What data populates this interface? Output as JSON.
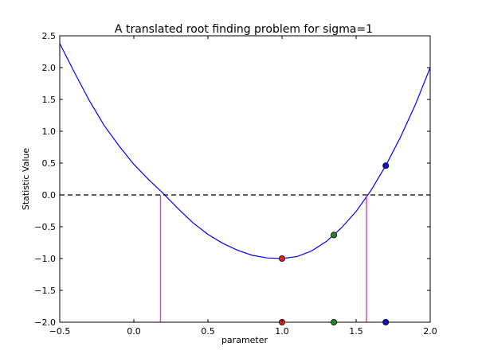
{
  "chart_data": {
    "type": "line",
    "title": "A translated root finding problem for sigma=1",
    "xlabel": "parameter",
    "ylabel": "Statistic Value",
    "xlim": [
      -0.5,
      2.0
    ],
    "ylim": [
      -2.0,
      2.5
    ],
    "xticks": [
      "−0.5",
      "0.0",
      "0.5",
      "1.0",
      "1.5",
      "2.0"
    ],
    "yticks": [
      "−2.0",
      "−1.5",
      "−1.0",
      "−0.5",
      "0.0",
      "0.5",
      "1.0",
      "1.5",
      "2.0",
      "2.5"
    ],
    "grid": false,
    "series": [
      {
        "kind": "curve",
        "color": "#0000ff",
        "x": [
          -0.5,
          -0.4,
          -0.3,
          -0.2,
          -0.1,
          0.0,
          0.1,
          0.2,
          0.3,
          0.4,
          0.5,
          0.6,
          0.7,
          0.8,
          0.9,
          1.0,
          1.1,
          1.2,
          1.3,
          1.4,
          1.5,
          1.6,
          1.7,
          1.8,
          1.9,
          2.0
        ],
        "y": [
          2.38,
          1.92,
          1.48,
          1.09,
          0.77,
          0.48,
          0.24,
          0.02,
          -0.22,
          -0.44,
          -0.62,
          -0.76,
          -0.87,
          -0.95,
          -0.99,
          -1.0,
          -0.97,
          -0.88,
          -0.73,
          -0.52,
          -0.26,
          0.07,
          0.46,
          0.91,
          1.42,
          2.0
        ]
      },
      {
        "kind": "hline",
        "y": 0.0,
        "style": "dashed",
        "color": "#000000"
      },
      {
        "kind": "vlines",
        "color": "#cc44cc",
        "x": [
          0.18,
          1.57
        ],
        "from_y": -2.0,
        "to_y": 0.0
      },
      {
        "kind": "points",
        "points": [
          {
            "x": 1.0,
            "y": -1.0,
            "color": "#dd2222"
          },
          {
            "x": 1.0,
            "y": -2.0,
            "color": "#dd2222"
          },
          {
            "x": 1.35,
            "y": -0.63,
            "color": "#228822"
          },
          {
            "x": 1.35,
            "y": -2.0,
            "color": "#228822"
          },
          {
            "x": 1.7,
            "y": 0.46,
            "color": "#1111cc"
          },
          {
            "x": 1.7,
            "y": -2.0,
            "color": "#1111cc"
          }
        ]
      }
    ]
  }
}
